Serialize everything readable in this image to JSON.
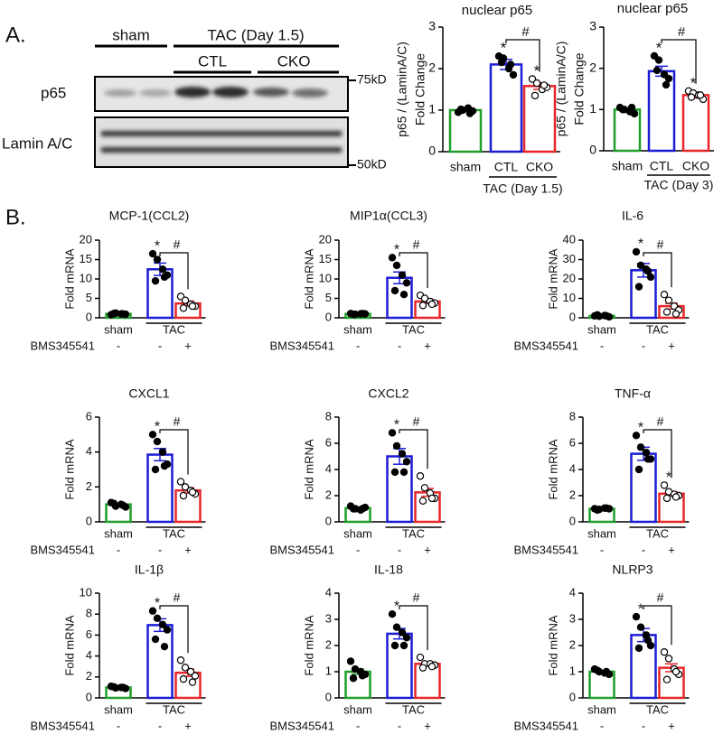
{
  "blot": {
    "panel_label": "A.",
    "sham": "sham",
    "tac": "TAC (Day 1.5)",
    "ctl": "CTL",
    "cko": "CKO",
    "rows": [
      "p65",
      "Lamin A/C"
    ],
    "markers": [
      "75kD",
      "50kD"
    ]
  },
  "panel_b_label": "B.",
  "chart_data": [
    {
      "type": "bar",
      "title": "nuclear p65",
      "ylabel": [
        "p65 / (LaminA/C)",
        "Fold Change"
      ],
      "categories": [
        "sham",
        "CTL",
        "CKO"
      ],
      "group_label": "TAC (Day 1.5)",
      "values": [
        1.0,
        2.1,
        1.58
      ],
      "errors": [
        0.04,
        0.12,
        0.08
      ],
      "colors": [
        "#1f9e2a",
        "#1c1cd6",
        "#e8262a"
      ],
      "point_colors": [
        "#000000",
        "#000000",
        "#ffffff"
      ],
      "points": [
        [
          0.95,
          1.0,
          1.05,
          0.98,
          1.02,
          0.92
        ],
        [
          2.3,
          2.25,
          2.0,
          1.85,
          2.15,
          2.1
        ],
        [
          1.75,
          1.65,
          1.5,
          1.55,
          1.35,
          1.6
        ]
      ],
      "star_labels": [
        null,
        "*",
        "*"
      ],
      "bracket_label": "#",
      "ylim": [
        0,
        3
      ],
      "yticks": [
        0,
        1,
        2,
        3
      ]
    },
    {
      "type": "bar",
      "title": "nuclear p65",
      "ylabel": [
        "p65 / (LaminA/C)",
        "Fold Change"
      ],
      "categories": [
        "sham",
        "CTL",
        "CKO"
      ],
      "group_label": "TAC (Day 3)",
      "values": [
        1.0,
        1.93,
        1.35
      ],
      "errors": [
        0.04,
        0.12,
        0.07
      ],
      "colors": [
        "#1f9e2a",
        "#1c1cd6",
        "#e8262a"
      ],
      "point_colors": [
        "#000000",
        "#000000",
        "#ffffff"
      ],
      "points": [
        [
          1.05,
          1.0,
          0.95,
          0.9,
          1.0,
          1.05
        ],
        [
          2.3,
          2.2,
          1.85,
          1.75,
          1.95,
          1.6
        ],
        [
          1.45,
          1.4,
          1.35,
          1.25,
          1.3,
          1.35
        ]
      ],
      "star_labels": [
        null,
        "*",
        "*"
      ],
      "bracket_label": "#",
      "ylim": [
        0,
        3
      ],
      "yticks": [
        0,
        1,
        2,
        3
      ]
    },
    {
      "type": "bar",
      "title": "MCP-1(CCL2)",
      "ylabel": [
        "Fold mRNA"
      ],
      "categories": [
        "sham",
        null,
        null
      ],
      "group_label": "TAC",
      "treatment_label": "BMS345541",
      "treatment": [
        "-",
        "-",
        "+"
      ],
      "values": [
        1.0,
        12.5,
        3.7
      ],
      "errors": [
        0.2,
        1.6,
        0.6
      ],
      "colors": [
        "#1f9e2a",
        "#1c1cd6",
        "#e8262a"
      ],
      "point_colors": [
        "#000000",
        "#000000",
        "#ffffff"
      ],
      "points": [
        [
          0.8,
          1.2,
          1.0,
          0.9,
          1.1,
          1.0
        ],
        [
          16.5,
          15,
          12.5,
          11,
          9.5,
          10.5
        ],
        [
          5.5,
          4.5,
          3.5,
          3.0,
          2.5,
          3.0
        ]
      ],
      "star_labels": [
        null,
        "*",
        null
      ],
      "bracket_label": "#",
      "ylim": [
        0,
        20
      ],
      "yticks": [
        0,
        5,
        10,
        15,
        20
      ]
    },
    {
      "type": "bar",
      "title": "MIP1α(CCL3)",
      "ylabel": [
        "Fold mRNA"
      ],
      "categories": [
        "sham",
        null,
        null
      ],
      "group_label": "TAC",
      "treatment_label": "BMS345541",
      "treatment": [
        "-",
        "-",
        "+"
      ],
      "values": [
        1.0,
        10.3,
        4.2
      ],
      "errors": [
        0.1,
        1.5,
        0.5
      ],
      "colors": [
        "#1f9e2a",
        "#1c1cd6",
        "#e8262a"
      ],
      "point_colors": [
        "#000000",
        "#000000",
        "#ffffff"
      ],
      "points": [
        [
          1.1,
          0.9,
          1.0,
          1.0,
          0.9,
          1.1
        ],
        [
          15.5,
          13.5,
          11,
          9,
          7,
          6
        ],
        [
          5.8,
          5,
          4.2,
          3.8,
          3.2,
          3.5
        ]
      ],
      "star_labels": [
        null,
        "*",
        null
      ],
      "bracket_label": "#",
      "ylim": [
        0,
        20
      ],
      "yticks": [
        0,
        5,
        10,
        15,
        20
      ]
    },
    {
      "type": "bar",
      "title": "IL-6",
      "ylabel": [
        "Fold mRNA"
      ],
      "categories": [
        "sham",
        null,
        null
      ],
      "group_label": "TAC",
      "treatment_label": "BMS345541",
      "treatment": [
        "-",
        "-",
        "+"
      ],
      "values": [
        1.0,
        24.5,
        6.0
      ],
      "errors": [
        0.2,
        3.5,
        1.5
      ],
      "colors": [
        "#1f9e2a",
        "#1c1cd6",
        "#e8262a"
      ],
      "point_colors": [
        "#000000",
        "#000000",
        "#ffffff"
      ],
      "points": [
        [
          1.0,
          0.8,
          1.2,
          0.5,
          1.5,
          1.0
        ],
        [
          34,
          27,
          25,
          21,
          16,
          24
        ],
        [
          12,
          9,
          6,
          4,
          3,
          2
        ]
      ],
      "star_labels": [
        null,
        "*",
        null
      ],
      "bracket_label": "#",
      "ylim": [
        0,
        40
      ],
      "yticks": [
        0,
        10,
        20,
        30,
        40
      ]
    },
    {
      "type": "bar",
      "title": "CXCL1",
      "ylabel": [
        "Fold mRNA"
      ],
      "categories": [
        "sham",
        null,
        null
      ],
      "group_label": "TAC",
      "treatment_label": "BMS345541",
      "treatment": [
        "-",
        "-",
        "+"
      ],
      "values": [
        1.0,
        3.85,
        1.8
      ],
      "errors": [
        0.07,
        0.35,
        0.15
      ],
      "colors": [
        "#1f9e2a",
        "#1c1cd6",
        "#e8262a"
      ],
      "point_colors": [
        "#000000",
        "#000000",
        "#ffffff"
      ],
      "points": [
        [
          1.1,
          0.9,
          1.0,
          0.85,
          1.05,
          0.95
        ],
        [
          5.0,
          4.6,
          4.0,
          3.3,
          3.0,
          3.2
        ],
        [
          2.3,
          2.0,
          1.8,
          1.6,
          1.5,
          1.7
        ]
      ],
      "star_labels": [
        null,
        "*",
        null
      ],
      "bracket_label": "#",
      "ylim": [
        0,
        6
      ],
      "yticks": [
        0,
        2,
        4,
        6
      ]
    },
    {
      "type": "bar",
      "title": "CXCL2",
      "ylabel": [
        "Fold mRNA"
      ],
      "categories": [
        "sham",
        null,
        null
      ],
      "group_label": "TAC",
      "treatment_label": "BMS345541",
      "treatment": [
        "-",
        "-",
        "+"
      ],
      "values": [
        1.05,
        5.0,
        2.25
      ],
      "errors": [
        0.1,
        0.6,
        0.3
      ],
      "colors": [
        "#1f9e2a",
        "#1c1cd6",
        "#e8262a"
      ],
      "point_colors": [
        "#000000",
        "#000000",
        "#ffffff"
      ],
      "points": [
        [
          1.2,
          1.0,
          0.9,
          1.1,
          1.0,
          1.0
        ],
        [
          6.8,
          5.8,
          5.2,
          4.6,
          3.8,
          3.8
        ],
        [
          3.5,
          2.6,
          2.2,
          1.8,
          1.6,
          1.8
        ]
      ],
      "star_labels": [
        null,
        "*",
        null
      ],
      "bracket_label": "#",
      "ylim": [
        0,
        8
      ],
      "yticks": [
        0,
        2,
        4,
        6,
        8
      ]
    },
    {
      "type": "bar",
      "title": "TNF-α",
      "ylabel": [
        "Fold mRNA"
      ],
      "categories": [
        "sham",
        null,
        null
      ],
      "group_label": "TAC",
      "treatment_label": "BMS345541",
      "treatment": [
        "-",
        "-",
        "+"
      ],
      "values": [
        1.0,
        5.2,
        2.15
      ],
      "errors": [
        0.05,
        0.5,
        0.15
      ],
      "colors": [
        "#1f9e2a",
        "#1c1cd6",
        "#e8262a"
      ],
      "point_colors": [
        "#000000",
        "#000000",
        "#ffffff"
      ],
      "points": [
        [
          1.0,
          0.95,
          1.05,
          1.0,
          0.9,
          1.05
        ],
        [
          6.6,
          5.7,
          5.3,
          4.8,
          4.0,
          4.8
        ],
        [
          2.8,
          2.3,
          2.1,
          2.0,
          1.8,
          1.9
        ]
      ],
      "star_labels": [
        null,
        "*",
        "*"
      ],
      "bracket_label": "#",
      "ylim": [
        0,
        8
      ],
      "yticks": [
        0,
        2,
        4,
        6,
        8
      ]
    },
    {
      "type": "bar",
      "title": "IL-1β",
      "ylabel": [
        "Fold mRNA"
      ],
      "categories": [
        "sham",
        null,
        null
      ],
      "group_label": "TAC",
      "treatment_label": "BMS345541",
      "treatment": [
        "-",
        "-",
        "+"
      ],
      "values": [
        1.0,
        6.95,
        2.4
      ],
      "errors": [
        0.08,
        0.6,
        0.35
      ],
      "colors": [
        "#1f9e2a",
        "#1c1cd6",
        "#e8262a"
      ],
      "point_colors": [
        "#000000",
        "#000000",
        "#ffffff"
      ],
      "points": [
        [
          1.1,
          0.95,
          1.0,
          0.9,
          1.05,
          1.0
        ],
        [
          8.3,
          7.6,
          7.0,
          6.5,
          5.6,
          4.9
        ],
        [
          3.6,
          2.9,
          2.5,
          2.1,
          1.8,
          1.5
        ]
      ],
      "star_labels": [
        null,
        "*",
        null
      ],
      "bracket_label": "#",
      "ylim": [
        0,
        10
      ],
      "yticks": [
        0,
        2,
        4,
        6,
        8,
        10
      ]
    },
    {
      "type": "bar",
      "title": "IL-18",
      "ylabel": [
        "Fold mRNA"
      ],
      "categories": [
        "sham",
        null,
        null
      ],
      "group_label": "TAC",
      "treatment_label": "BMS345541",
      "treatment": [
        "-",
        "-",
        "+"
      ],
      "values": [
        1.0,
        2.45,
        1.3
      ],
      "errors": [
        0.1,
        0.2,
        0.07
      ],
      "colors": [
        "#1f9e2a",
        "#1c1cd6",
        "#e8262a"
      ],
      "point_colors": [
        "#000000",
        "#000000",
        "#ffffff"
      ],
      "points": [
        [
          1.4,
          1.1,
          1.0,
          0.9,
          0.75,
          0.85
        ],
        [
          3.2,
          2.7,
          2.5,
          2.3,
          2.0,
          2.0
        ],
        [
          1.55,
          1.3,
          1.3,
          1.25,
          1.15,
          1.2
        ]
      ],
      "star_labels": [
        null,
        "*",
        null
      ],
      "bracket_label": "#",
      "ylim": [
        0,
        4
      ],
      "yticks": [
        0,
        1,
        2,
        3,
        4
      ]
    },
    {
      "type": "bar",
      "title": "NLRP3",
      "ylabel": [
        "Fold mRNA"
      ],
      "categories": [
        "sham",
        null,
        null
      ],
      "group_label": "TAC",
      "treatment_label": "BMS345541",
      "treatment": [
        "-",
        "-",
        "+"
      ],
      "values": [
        1.0,
        2.4,
        1.15
      ],
      "errors": [
        0.05,
        0.25,
        0.15
      ],
      "colors": [
        "#1f9e2a",
        "#1c1cd6",
        "#e8262a"
      ],
      "point_colors": [
        "#000000",
        "#000000",
        "#ffffff"
      ],
      "points": [
        [
          1.1,
          1.0,
          0.95,
          0.9,
          1.05,
          1.0
        ],
        [
          3.1,
          2.7,
          2.4,
          2.0,
          1.9,
          2.2
        ],
        [
          1.75,
          1.5,
          1.1,
          0.9,
          0.7,
          1.0
        ]
      ],
      "star_labels": [
        null,
        "*",
        null
      ],
      "bracket_label": "#",
      "ylim": [
        0,
        4
      ],
      "yticks": [
        0,
        1,
        2,
        3,
        4
      ]
    }
  ]
}
